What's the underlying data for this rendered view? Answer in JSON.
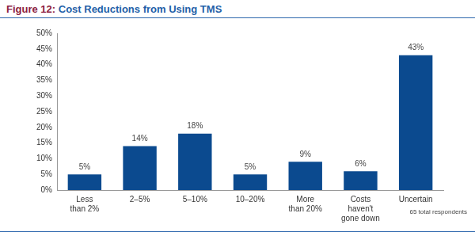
{
  "chart_data": {
    "type": "bar",
    "title": "Figure 12: Cost Reductions from Using TMS",
    "categories": [
      "Less than 2%",
      "2–5%",
      "5–10%",
      "10–20%",
      "More than 20%",
      "Costs haven't gone down",
      "Uncertain"
    ],
    "values": [
      5,
      14,
      18,
      5,
      9,
      6,
      43
    ],
    "value_labels": [
      "5%",
      "14%",
      "18%",
      "5%",
      "9%",
      "6%",
      "43%"
    ],
    "data_labels": true,
    "color": "#0b4a8f",
    "ylim": [
      0,
      50
    ],
    "yticks": [
      {
        "value": 0,
        "label": "0%"
      },
      {
        "value": 5,
        "label": "5%"
      },
      {
        "value": 10,
        "label": "10%"
      },
      {
        "value": 15,
        "label": "15%"
      },
      {
        "value": 20,
        "label": "20%"
      },
      {
        "value": 25,
        "label": "25%"
      },
      {
        "value": 30,
        "label": "30%"
      },
      {
        "value": 35,
        "label": "35%"
      },
      {
        "value": 40,
        "label": "40%"
      },
      {
        "value": 45,
        "label": "45%"
      },
      {
        "value": 50,
        "label": "50%"
      }
    ],
    "grid": false,
    "annotations": [
      "65 total respondents"
    ]
  }
}
